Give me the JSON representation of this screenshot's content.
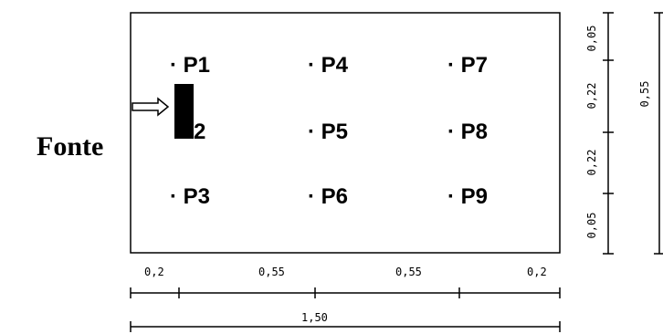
{
  "source_label": "Fonte",
  "points": [
    {
      "id": "P1",
      "label": "· P1"
    },
    {
      "id": "P4",
      "label": "· P4"
    },
    {
      "id": "P7",
      "label": "· P7"
    },
    {
      "id": "P2",
      "label": "P2"
    },
    {
      "id": "P5",
      "label": "· P5"
    },
    {
      "id": "P8",
      "label": "· P8"
    },
    {
      "id": "P3",
      "label": "· P3"
    },
    {
      "id": "P6",
      "label": "· P6"
    },
    {
      "id": "P9",
      "label": "· P9"
    }
  ],
  "dimensions": {
    "bottom_segments": [
      "0,2",
      "0,55",
      "0,55",
      "0,2"
    ],
    "bottom_total": "1,50",
    "right_segments": [
      "0,05",
      "0,22",
      "0,22",
      "0,05"
    ],
    "right_total": "0,55"
  }
}
